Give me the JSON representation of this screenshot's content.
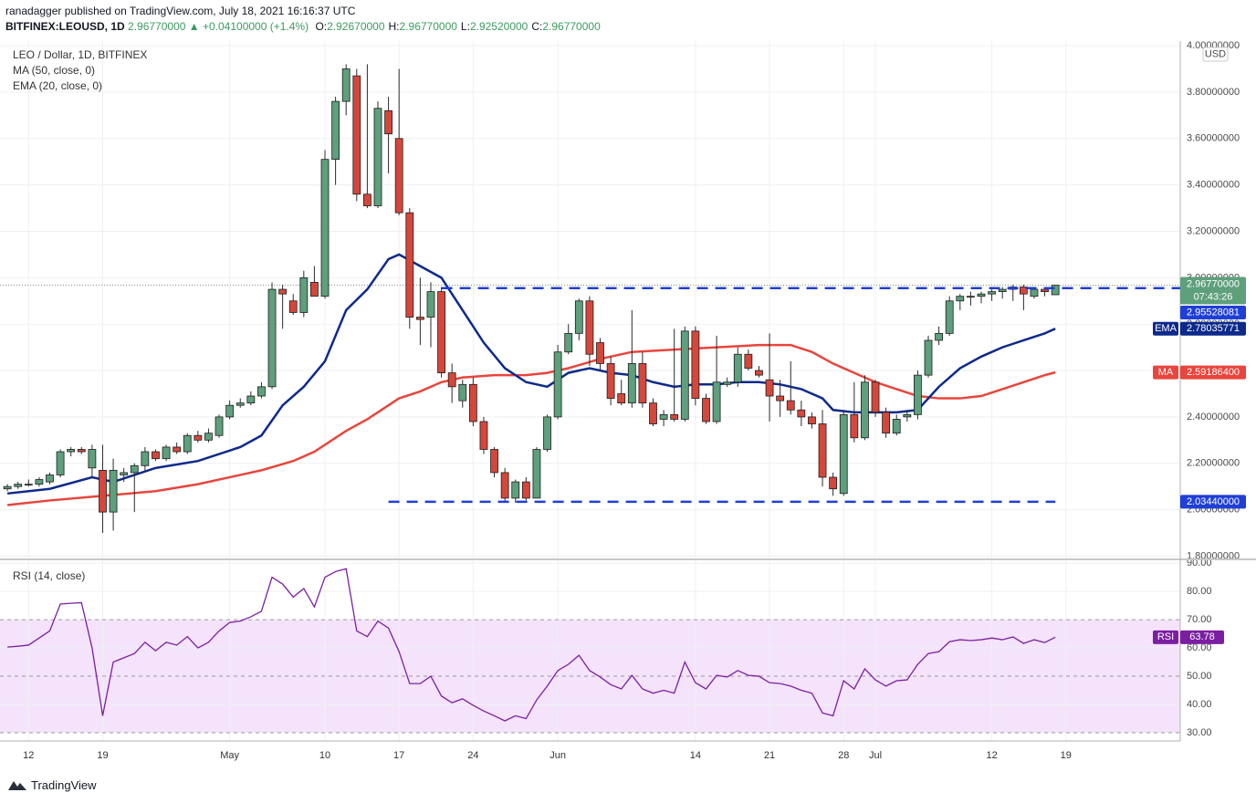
{
  "header": {
    "published": "ranadagger published on TradingView.com, July 18, 2021 16:16:37 UTC",
    "symbol": "BITFINEX:LEOUSD, 1D",
    "last": "2.96770000",
    "change": "▲ +0.04100000 (+1.4%)",
    "ohlc": [
      {
        "key": "O:",
        "value": "2.92670000"
      },
      {
        "key": "H:",
        "value": "2.96770000"
      },
      {
        "key": "L:",
        "value": "2.92520000"
      },
      {
        "key": "C:",
        "value": "2.96770000"
      }
    ]
  },
  "brand": "TradingView",
  "chart_data": [
    {
      "type": "candlestick",
      "title": "LEO / Dollar, 1D, BITFINEX",
      "currency": "USD",
      "open": [
        2.09,
        2.1,
        2.11,
        2.11,
        2.12,
        2.15,
        2.25,
        2.26,
        2.18,
        2.17,
        1.99,
        2.15,
        2.16,
        2.19,
        2.25,
        2.22,
        2.27,
        2.25,
        2.32,
        2.3,
        2.32,
        2.4,
        2.45,
        2.46,
        2.49,
        2.53,
        2.95,
        2.9,
        2.85,
        2.98,
        2.92,
        3.51,
        3.76,
        3.87,
        3.36,
        3.31,
        3.72,
        3.6,
        3.28,
        2.83,
        2.83,
        2.94,
        2.59,
        2.47,
        2.54,
        2.38,
        2.26,
        2.16,
        2.05,
        2.12,
        2.05,
        2.26,
        2.4,
        2.68,
        2.76,
        2.9,
        2.72,
        2.63,
        2.5,
        2.46,
        2.63,
        2.46,
        2.39,
        2.41,
        2.39,
        2.77,
        2.48,
        2.38,
        2.54,
        2.55,
        2.67,
        2.6,
        2.56,
        2.49,
        2.47,
        2.43,
        2.4,
        2.37,
        2.14,
        2.07,
        2.41,
        2.31,
        2.55,
        2.42,
        2.33,
        2.4,
        2.41,
        2.58,
        2.73,
        2.76,
        2.9,
        2.92,
        2.92,
        2.93,
        2.94,
        2.95,
        2.96,
        2.92,
        2.95,
        2.9267
      ],
      "high": [
        2.11,
        2.12,
        2.13,
        2.14,
        2.16,
        2.26,
        2.27,
        2.27,
        2.28,
        2.28,
        2.22,
        2.18,
        2.2,
        2.27,
        2.26,
        2.28,
        2.29,
        2.33,
        2.34,
        2.35,
        2.41,
        2.47,
        2.48,
        2.51,
        2.55,
        2.98,
        2.97,
        2.93,
        3.03,
        3.05,
        3.55,
        3.78,
        3.92,
        3.9,
        3.92,
        3.76,
        3.78,
        3.9,
        3.3,
        3.0,
        2.98,
        2.96,
        2.63,
        2.56,
        2.57,
        2.4,
        2.27,
        2.18,
        2.13,
        2.14,
        2.27,
        2.41,
        2.71,
        2.8,
        2.91,
        2.92,
        2.74,
        2.66,
        2.56,
        2.86,
        2.68,
        2.48,
        2.43,
        2.78,
        2.79,
        2.79,
        2.5,
        2.75,
        2.57,
        2.7,
        2.69,
        2.62,
        2.76,
        2.56,
        2.64,
        2.47,
        2.42,
        2.43,
        2.16,
        2.43,
        2.55,
        2.58,
        2.56,
        2.44,
        2.41,
        2.43,
        2.6,
        2.75,
        2.79,
        2.92,
        2.93,
        2.94,
        2.94,
        2.95,
        2.96,
        2.97,
        2.97,
        2.96,
        2.96,
        2.9677
      ],
      "low": [
        2.08,
        2.09,
        2.1,
        2.1,
        2.11,
        2.14,
        2.23,
        2.24,
        2.14,
        1.9,
        1.91,
        2.12,
        1.99,
        2.17,
        2.21,
        2.21,
        2.24,
        2.24,
        2.29,
        2.29,
        2.31,
        2.39,
        2.44,
        2.45,
        2.48,
        2.52,
        2.78,
        2.84,
        2.83,
        2.92,
        2.91,
        3.4,
        3.7,
        3.33,
        3.3,
        3.3,
        3.45,
        3.27,
        2.78,
        2.71,
        2.7,
        2.57,
        2.46,
        2.44,
        2.36,
        2.24,
        2.14,
        2.03,
        2.03,
        2.04,
        2.05,
        2.25,
        2.39,
        2.67,
        2.73,
        2.62,
        2.6,
        2.45,
        2.45,
        2.44,
        2.44,
        2.36,
        2.36,
        2.38,
        2.38,
        2.45,
        2.37,
        2.37,
        2.53,
        2.53,
        2.6,
        2.57,
        2.38,
        2.4,
        2.41,
        2.36,
        2.35,
        2.1,
        2.06,
        2.06,
        2.29,
        2.3,
        2.4,
        2.31,
        2.32,
        2.38,
        2.39,
        2.57,
        2.71,
        2.75,
        2.86,
        2.88,
        2.89,
        2.9,
        2.91,
        2.9,
        2.86,
        2.91,
        2.92,
        2.9252
      ],
      "close": [
        2.1,
        2.11,
        2.11,
        2.13,
        2.15,
        2.25,
        2.26,
        2.25,
        2.26,
        1.99,
        2.17,
        2.16,
        2.19,
        2.25,
        2.22,
        2.27,
        2.25,
        2.32,
        2.3,
        2.33,
        2.4,
        2.45,
        2.46,
        2.49,
        2.53,
        2.95,
        2.93,
        2.85,
        3.0,
        2.92,
        3.51,
        3.76,
        3.9,
        3.36,
        3.31,
        3.73,
        3.62,
        3.28,
        2.83,
        2.82,
        2.94,
        2.59,
        2.53,
        2.54,
        2.38,
        2.26,
        2.16,
        2.05,
        2.12,
        2.05,
        2.26,
        2.4,
        2.68,
        2.76,
        2.9,
        2.67,
        2.63,
        2.48,
        2.46,
        2.63,
        2.46,
        2.37,
        2.41,
        2.39,
        2.77,
        2.48,
        2.38,
        2.55,
        2.55,
        2.67,
        2.61,
        2.58,
        2.49,
        2.47,
        2.43,
        2.4,
        2.37,
        2.14,
        2.09,
        2.41,
        2.31,
        2.55,
        2.42,
        2.33,
        2.39,
        2.41,
        2.58,
        2.73,
        2.76,
        2.9,
        2.92,
        2.92,
        2.93,
        2.94,
        2.95,
        2.96,
        2.93,
        2.95,
        2.94,
        2.9677
      ],
      "up_color": "#5e9f7c",
      "down_color": "#d5473b",
      "xlim": [
        -0.7,
        110.8
      ],
      "xticks": [
        {
          "value": 2,
          "label": "12"
        },
        {
          "value": 9,
          "label": "19"
        },
        {
          "value": 21,
          "label": "May"
        },
        {
          "value": 30,
          "label": "10"
        },
        {
          "value": 37,
          "label": "17"
        },
        {
          "value": 44,
          "label": "24"
        },
        {
          "value": 52,
          "label": "Jun"
        },
        {
          "value": 65,
          "label": "14"
        },
        {
          "value": 72,
          "label": "21"
        },
        {
          "value": 79,
          "label": "28"
        },
        {
          "value": 82,
          "label": "Jul"
        },
        {
          "value": 93,
          "label": "12"
        },
        {
          "value": 100,
          "label": "19"
        }
      ],
      "ylim": [
        1.79,
        4.02
      ],
      "yticks": [
        {
          "value": 1.8,
          "label": "1.80000000"
        },
        {
          "value": 2.0,
          "label": "2.00000000"
        },
        {
          "value": 2.2,
          "label": "2.20000000"
        },
        {
          "value": 2.4,
          "label": "2.40000000"
        },
        {
          "value": 2.6,
          "label": "2.60000000"
        },
        {
          "value": 2.8,
          "label": "2.80000000"
        },
        {
          "value": 3.0,
          "label": "3.00000000"
        },
        {
          "value": 3.2,
          "label": "3.20000000"
        },
        {
          "value": 3.4,
          "label": "3.40000000"
        },
        {
          "value": 3.6,
          "label": "3.60000000"
        },
        {
          "value": 3.8,
          "label": "3.80000000"
        },
        {
          "value": 4.0,
          "label": "4.00000000"
        }
      ],
      "grid": true,
      "series": [
        {
          "name": "MA (50, close, 0)",
          "tag": "MA",
          "color": "#e8453c",
          "x": [
            0,
            4,
            9,
            14,
            18,
            22,
            24,
            27,
            29,
            32,
            34,
            37,
            39,
            41,
            43,
            46,
            49,
            51,
            53,
            56,
            59,
            63,
            67,
            71,
            74,
            76,
            78,
            80,
            82,
            84,
            86,
            88,
            90,
            92,
            94,
            96,
            98,
            99
          ],
          "values": [
            2.02,
            2.04,
            2.06,
            2.08,
            2.11,
            2.15,
            2.17,
            2.21,
            2.25,
            2.34,
            2.39,
            2.48,
            2.51,
            2.55,
            2.57,
            2.58,
            2.58,
            2.59,
            2.61,
            2.65,
            2.68,
            2.69,
            2.7,
            2.71,
            2.71,
            2.68,
            2.63,
            2.59,
            2.55,
            2.52,
            2.49,
            2.48,
            2.48,
            2.49,
            2.52,
            2.55,
            2.58,
            2.591864
          ],
          "last_label": "2.59186400"
        },
        {
          "name": "EMA (20, close, 0)",
          "tag": "EMA",
          "color": "#0d2a8a",
          "x": [
            0,
            4,
            8,
            10,
            14,
            18,
            22,
            24,
            26,
            28,
            30,
            32,
            34,
            36,
            37,
            39,
            41,
            43,
            45,
            47,
            49,
            51,
            53,
            55,
            57,
            59,
            61,
            63,
            65,
            67,
            69,
            71,
            73,
            75,
            77,
            78,
            80,
            82,
            84,
            86,
            88,
            90,
            92,
            94,
            96,
            98,
            99
          ],
          "values": [
            2.07,
            2.09,
            2.14,
            2.12,
            2.18,
            2.21,
            2.27,
            2.32,
            2.45,
            2.53,
            2.64,
            2.86,
            2.95,
            3.08,
            3.1,
            3.05,
            3.0,
            2.86,
            2.72,
            2.61,
            2.55,
            2.53,
            2.59,
            2.61,
            2.59,
            2.58,
            2.55,
            2.53,
            2.54,
            2.54,
            2.55,
            2.55,
            2.54,
            2.52,
            2.48,
            2.43,
            2.42,
            2.42,
            2.42,
            2.43,
            2.53,
            2.61,
            2.66,
            2.7,
            2.73,
            2.76,
            2.78035771
          ],
          "last_label": "2.78035771"
        }
      ],
      "levels": [
        {
          "value": 2.95528081,
          "label": "2.95528081",
          "from": 41,
          "color": "#1f3fd6"
        },
        {
          "value": 2.0344,
          "label": "2.03440000",
          "from": 36,
          "to": 99,
          "color": "#1f3fd6"
        }
      ],
      "last_price": {
        "value": 2.9677,
        "label": "2.96770000",
        "countdown": "07:43:26"
      }
    },
    {
      "type": "line",
      "title": "RSI (14, close)",
      "tag": "RSI",
      "color": "#7b1fa2",
      "values": [
        60.3,
        60.6,
        61,
        63.5,
        66,
        75.5,
        75.8,
        76,
        60,
        36,
        55,
        56.5,
        58,
        62,
        59,
        62,
        61,
        64,
        60,
        62,
        66,
        69,
        69.5,
        71,
        73,
        85,
        82.6,
        78,
        81,
        74.5,
        85,
        87,
        88,
        66,
        64,
        69.5,
        67,
        58.7,
        47.4,
        47.4,
        50,
        43,
        40.6,
        42,
        39.7,
        37.7,
        36,
        34.2,
        36,
        35,
        41.6,
        46.5,
        52,
        54.2,
        57.4,
        52,
        49.7,
        47,
        45.5,
        50.3,
        45.5,
        44,
        45,
        44,
        55,
        47.7,
        45.5,
        50.3,
        49.7,
        52,
        50.3,
        50,
        47.7,
        47.4,
        46.5,
        45,
        44,
        37,
        36,
        48.4,
        45.5,
        52.6,
        48.7,
        46.5,
        48.4,
        48.7,
        54.2,
        58,
        58.7,
        62.2,
        62.9,
        62.6,
        62.9,
        63.5,
        62.9,
        63.9,
        61.6,
        62.9,
        61.9,
        63.78
      ],
      "last_label": "63.78",
      "ylim": [
        27.1,
        91
      ],
      "yticks": [
        {
          "value": 30,
          "label": "30.00"
        },
        {
          "value": 40,
          "label": "40.00"
        },
        {
          "value": 50,
          "label": "50.00"
        },
        {
          "value": 60,
          "label": "60.00"
        },
        {
          "value": 70,
          "label": "70.00"
        },
        {
          "value": 80,
          "label": "80.00"
        },
        {
          "value": 90,
          "label": "90.00"
        }
      ],
      "band": [
        30,
        70
      ],
      "band_color": "#f4e3fb",
      "midline": 50
    }
  ]
}
